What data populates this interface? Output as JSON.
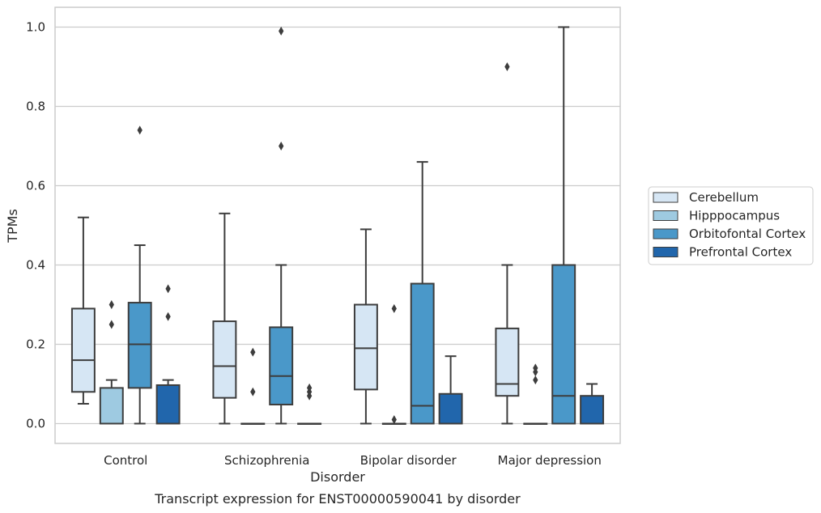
{
  "chart_data": {
    "type": "boxplot",
    "title": "Transcript expression for ENST00000590041 by disorder",
    "xlabel": "Disorder",
    "ylabel": "TPMs",
    "categories": [
      "Control",
      "Schizophrenia",
      "Bipolar disorder",
      "Major depression"
    ],
    "ylim": [
      -0.05,
      1.05
    ],
    "yticks": [
      0.0,
      0.2,
      0.4,
      0.6,
      0.8,
      1.0
    ],
    "ytick_labels": [
      "0.0",
      "0.2",
      "0.4",
      "0.6",
      "0.8",
      "1.0"
    ],
    "grid": true,
    "legend_position": "right",
    "series": [
      {
        "name": "Cerebellum",
        "color": "#d6e6f4",
        "boxes": [
          {
            "whislo": 0.05,
            "q1": 0.08,
            "med": 0.16,
            "q3": 0.29,
            "whishi": 0.52,
            "fliers": []
          },
          {
            "whislo": 0.0,
            "q1": 0.065,
            "med": 0.145,
            "q3": 0.258,
            "whishi": 0.53,
            "fliers": []
          },
          {
            "whislo": 0.0,
            "q1": 0.086,
            "med": 0.19,
            "q3": 0.3,
            "whishi": 0.49,
            "fliers": []
          },
          {
            "whislo": 0.0,
            "q1": 0.07,
            "med": 0.1,
            "q3": 0.24,
            "whishi": 0.4,
            "fliers": [
              0.9
            ]
          }
        ]
      },
      {
        "name": "Hipppocampus",
        "color": "#9ecae1",
        "boxes": [
          {
            "whislo": 0.0,
            "q1": 0.0,
            "med": 0.0,
            "q3": 0.09,
            "whishi": 0.11,
            "fliers": [
              0.25,
              0.3
            ]
          },
          {
            "whislo": 0.0,
            "q1": 0.0,
            "med": 0.0,
            "q3": 0.0,
            "whishi": 0.0,
            "fliers": [
              0.08,
              0.18
            ]
          },
          {
            "whislo": 0.0,
            "q1": 0.0,
            "med": 0.0,
            "q3": 0.0,
            "whishi": 0.0,
            "fliers": [
              0.01,
              0.29
            ]
          },
          {
            "whislo": 0.0,
            "q1": 0.0,
            "med": 0.0,
            "q3": 0.0,
            "whishi": 0.0,
            "fliers": [
              0.11,
              0.13,
              0.14
            ]
          }
        ]
      },
      {
        "name": "Orbitofontal Cortex",
        "color": "#4a98c9",
        "boxes": [
          {
            "whislo": 0.0,
            "q1": 0.09,
            "med": 0.2,
            "q3": 0.305,
            "whishi": 0.45,
            "fliers": [
              0.74
            ]
          },
          {
            "whislo": 0.0,
            "q1": 0.048,
            "med": 0.12,
            "q3": 0.243,
            "whishi": 0.4,
            "fliers": [
              0.7,
              0.99
            ]
          },
          {
            "whislo": 0.0,
            "q1": 0.0,
            "med": 0.045,
            "q3": 0.353,
            "whishi": 0.66,
            "fliers": []
          },
          {
            "whislo": 0.0,
            "q1": 0.0,
            "med": 0.07,
            "q3": 0.4,
            "whishi": 1.0,
            "fliers": []
          }
        ]
      },
      {
        "name": "Prefrontal Cortex",
        "color": "#2166ac",
        "boxes": [
          {
            "whislo": 0.0,
            "q1": 0.0,
            "med": 0.0,
            "q3": 0.097,
            "whishi": 0.11,
            "fliers": [
              0.27,
              0.34
            ]
          },
          {
            "whislo": 0.0,
            "q1": 0.0,
            "med": 0.0,
            "q3": 0.0,
            "whishi": 0.0,
            "fliers": [
              0.07,
              0.08,
              0.09
            ]
          },
          {
            "whislo": 0.0,
            "q1": 0.0,
            "med": 0.0,
            "q3": 0.075,
            "whishi": 0.17,
            "fliers": []
          },
          {
            "whislo": 0.0,
            "q1": 0.0,
            "med": 0.0,
            "q3": 0.07,
            "whishi": 0.1,
            "fliers": []
          }
        ]
      }
    ]
  }
}
